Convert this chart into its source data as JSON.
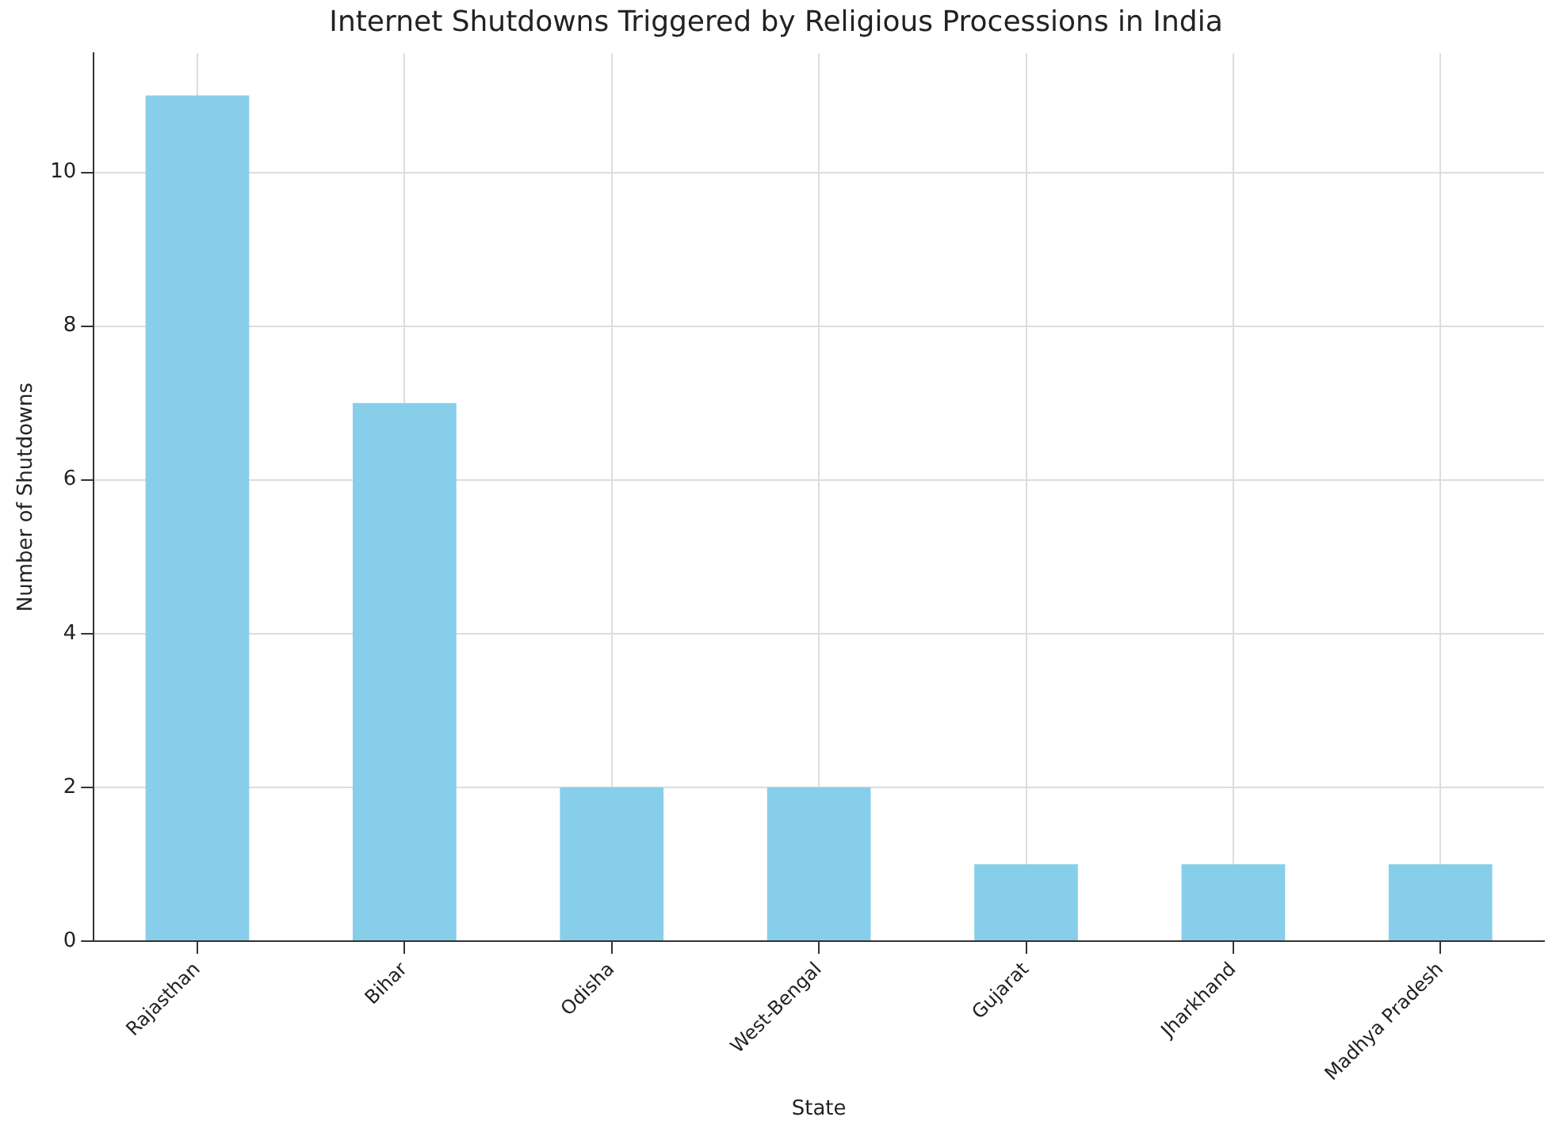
{
  "chart_data": {
    "type": "bar",
    "title": "Internet Shutdowns Triggered by Religious Processions in India",
    "xlabel": "State",
    "ylabel": "Number of Shutdowns",
    "categories": [
      "Rajasthan",
      "Bihar",
      "Odisha",
      "West-Bengal",
      "Gujarat",
      "Jharkhand",
      "Madhya Pradesh"
    ],
    "values": [
      11,
      7,
      2,
      2,
      1,
      1,
      1
    ],
    "color": "#87ceeb",
    "ylim": [
      0,
      11.55
    ],
    "yticks": [
      0,
      2,
      4,
      6,
      8,
      10
    ],
    "grid": true,
    "legend": false
  }
}
